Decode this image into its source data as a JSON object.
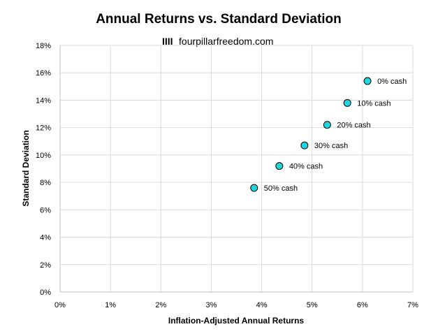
{
  "chart_data": {
    "type": "scatter",
    "title": "Annual Returns vs. Standard Deviation",
    "watermark": {
      "bars": "IIII",
      "text": "fourpillarfreedom.com"
    },
    "xlabel": "Inflation-Adjusted Annual Returns",
    "ylabel": "Standard Deviation",
    "xlim": [
      0,
      7
    ],
    "ylim": [
      0,
      18
    ],
    "x_ticks": [
      0,
      1,
      2,
      3,
      4,
      5,
      6,
      7
    ],
    "x_tick_labels": [
      "0%",
      "1%",
      "2%",
      "3%",
      "4%",
      "5%",
      "6%",
      "7%"
    ],
    "y_ticks": [
      0,
      2,
      4,
      6,
      8,
      10,
      12,
      14,
      16,
      18
    ],
    "y_tick_labels": [
      "0%",
      "2%",
      "4%",
      "6%",
      "8%",
      "10%",
      "12%",
      "14%",
      "16%",
      "18%"
    ],
    "grid": true,
    "marker_color": "#1fd6de",
    "points": [
      {
        "x": 6.1,
        "y": 15.4,
        "label": "0% cash"
      },
      {
        "x": 5.7,
        "y": 13.8,
        "label": "10% cash"
      },
      {
        "x": 5.3,
        "y": 12.2,
        "label": "20% cash"
      },
      {
        "x": 4.85,
        "y": 10.7,
        "label": "30% cash"
      },
      {
        "x": 4.35,
        "y": 9.2,
        "label": "40% cash"
      },
      {
        "x": 3.85,
        "y": 7.6,
        "label": "50% cash"
      }
    ]
  }
}
